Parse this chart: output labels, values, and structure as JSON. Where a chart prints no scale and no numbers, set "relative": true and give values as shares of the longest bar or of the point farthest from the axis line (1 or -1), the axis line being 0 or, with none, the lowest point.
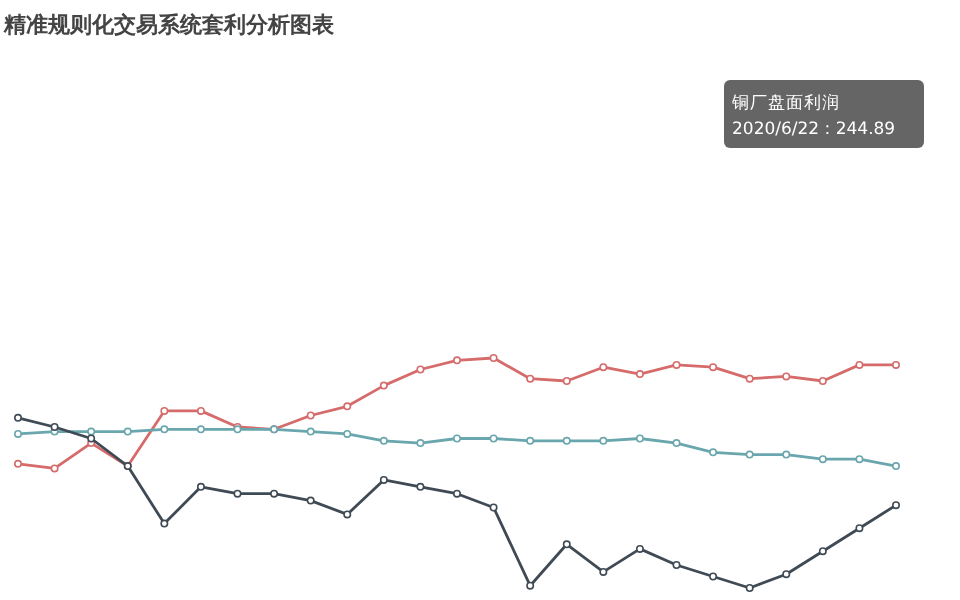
{
  "chart_data": {
    "type": "line",
    "title": "精准规则化交易系统套利分析图表",
    "relative": true,
    "marker": "circle",
    "categories": [
      null,
      null,
      null,
      null,
      null,
      null,
      null,
      null,
      null,
      null,
      null,
      null,
      null,
      null,
      null,
      null,
      null,
      null,
      null,
      null,
      null,
      null,
      null,
      null,
      null
    ],
    "series": [
      {
        "color": "#d66b6b",
        "values": [
          0.54,
          0.52,
          0.63,
          0.53,
          0.77,
          0.77,
          0.7,
          0.69,
          0.75,
          0.79,
          0.88,
          0.95,
          0.99,
          1.0,
          0.91,
          0.9,
          0.96,
          0.93,
          0.97,
          0.96,
          0.91,
          0.92,
          0.9,
          0.97,
          0.97
        ]
      },
      {
        "color": "#6aa6ad",
        "values": [
          0.67,
          0.68,
          0.68,
          0.68,
          0.69,
          0.69,
          0.69,
          0.69,
          0.68,
          0.67,
          0.64,
          0.63,
          0.65,
          0.65,
          0.64,
          0.64,
          0.64,
          0.65,
          0.63,
          0.59,
          0.58,
          0.58,
          0.56,
          0.56,
          0.53
        ]
      },
      {
        "color": "#3f4a55",
        "values": [
          0.74,
          0.7,
          0.65,
          0.53,
          0.28,
          0.44,
          0.41,
          0.41,
          0.38,
          0.32,
          0.47,
          0.44,
          0.41,
          0.35,
          0.01,
          0.19,
          0.07,
          0.17,
          0.1,
          0.05,
          0.0,
          0.06,
          0.16,
          0.26,
          0.36
        ]
      }
    ],
    "annotations": [
      "铜厂盘面利润",
      "2020/6/22 : 244.89"
    ]
  }
}
